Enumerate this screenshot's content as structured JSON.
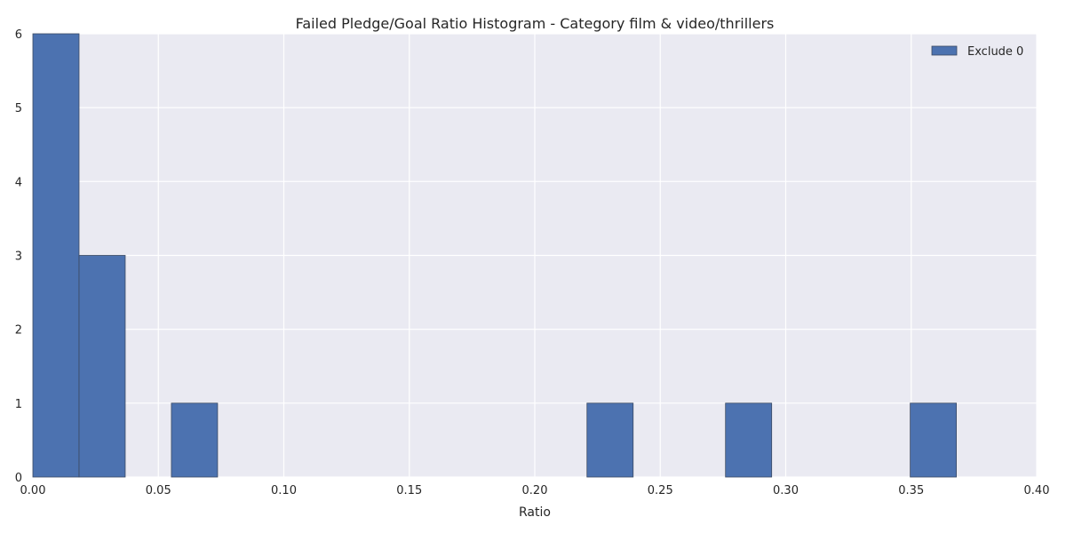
{
  "chart_data": {
    "type": "bar",
    "title": "Failed Pledge/Goal Ratio Histogram - Category film & video/thrillers",
    "xlabel": "Ratio",
    "ylabel": "",
    "xlim": [
      0.0,
      0.4
    ],
    "ylim": [
      0,
      6
    ],
    "x_ticks": [
      "0.00",
      "0.05",
      "0.10",
      "0.15",
      "0.20",
      "0.25",
      "0.30",
      "0.35",
      "0.40"
    ],
    "y_ticks": [
      "0",
      "1",
      "2",
      "3",
      "4",
      "5",
      "6"
    ],
    "grid": true,
    "legend_position": "top-right",
    "bin_width": 0.0184,
    "series": [
      {
        "name": "Exclude 0",
        "color": "#4c72b0",
        "bins": [
          {
            "start": 0.0,
            "count": 6
          },
          {
            "start": 0.0184,
            "count": 3
          },
          {
            "start": 0.0552,
            "count": 1
          },
          {
            "start": 0.2208,
            "count": 1
          },
          {
            "start": 0.276,
            "count": 1
          },
          {
            "start": 0.3496,
            "count": 1
          }
        ]
      }
    ]
  }
}
